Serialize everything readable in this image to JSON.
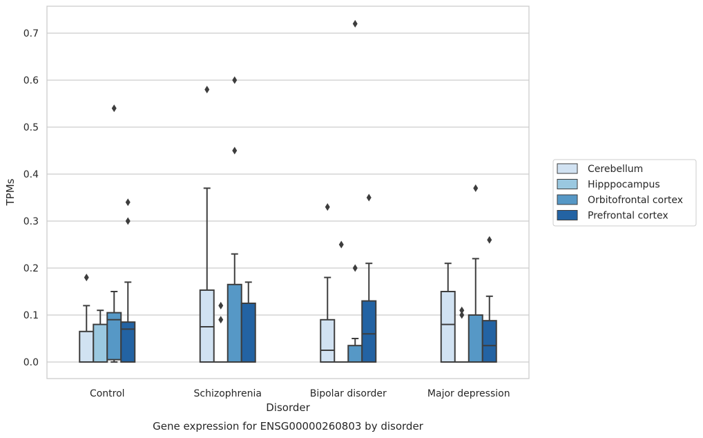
{
  "chart_data": {
    "type": "box",
    "caption": "Gene expression for ENSG00000260803 by disorder",
    "xlabel": "Disorder",
    "ylabel": "TPMs",
    "ylim": [
      -0.035,
      0.76
    ],
    "yticks": [
      0.0,
      0.1,
      0.2,
      0.3,
      0.4,
      0.5,
      0.6,
      0.7
    ],
    "ytick_labels": [
      "0.0",
      "0.1",
      "0.2",
      "0.3",
      "0.4",
      "0.5",
      "0.6",
      "0.7"
    ],
    "grid": "horizontal",
    "legend_position": "right",
    "categories": [
      "Control",
      "Schizophrenia",
      "Bipolar disorder",
      "Major depression"
    ],
    "series": [
      {
        "name": "Cerebellum",
        "color": "#d1e2f2",
        "boxes": [
          {
            "whisker_low": 0.0,
            "q1": 0.0,
            "median": 0.0,
            "q3": 0.065,
            "whisker_high": 0.12,
            "outliers": [
              0.18
            ]
          },
          {
            "whisker_low": 0.0,
            "q1": 0.0,
            "median": 0.075,
            "q3": 0.153,
            "whisker_high": 0.37,
            "outliers": [
              0.58
            ]
          },
          {
            "whisker_low": 0.0,
            "q1": 0.0,
            "median": 0.025,
            "q3": 0.09,
            "whisker_high": 0.18,
            "outliers": [
              0.33
            ]
          },
          {
            "whisker_low": 0.0,
            "q1": 0.0,
            "median": 0.08,
            "q3": 0.15,
            "whisker_high": 0.21,
            "outliers": []
          }
        ]
      },
      {
        "name": "Hipppocampus",
        "color": "#9ac8e0",
        "boxes": [
          {
            "whisker_low": 0.0,
            "q1": 0.0,
            "median": 0.0,
            "q3": 0.08,
            "whisker_high": 0.11,
            "outliers": []
          },
          {
            "whisker_low": 0.0,
            "q1": 0.0,
            "median": 0.0,
            "q3": 0.0,
            "whisker_high": 0.0,
            "outliers": [
              0.12,
              0.09
            ]
          },
          {
            "whisker_low": 0.0,
            "q1": 0.0,
            "median": 0.0,
            "q3": 0.0,
            "whisker_high": 0.0,
            "outliers": [
              0.25
            ]
          },
          {
            "whisker_low": 0.0,
            "q1": 0.0,
            "median": 0.0,
            "q3": 0.0,
            "whisker_high": 0.0,
            "outliers": [
              0.11,
              0.1
            ]
          }
        ]
      },
      {
        "name": "Orbitofrontal cortex",
        "color": "#5698c6",
        "boxes": [
          {
            "whisker_low": 0.0,
            "q1": 0.005,
            "median": 0.09,
            "q3": 0.105,
            "whisker_high": 0.15,
            "outliers": [
              0.54
            ]
          },
          {
            "whisker_low": 0.0,
            "q1": 0.0,
            "median": 0.0,
            "q3": 0.165,
            "whisker_high": 0.23,
            "outliers": [
              0.6,
              0.45
            ]
          },
          {
            "whisker_low": 0.0,
            "q1": 0.0,
            "median": 0.0,
            "q3": 0.035,
            "whisker_high": 0.05,
            "outliers": [
              0.72,
              0.2
            ]
          },
          {
            "whisker_low": 0.0,
            "q1": 0.0,
            "median": 0.0,
            "q3": 0.1,
            "whisker_high": 0.22,
            "outliers": [
              0.37
            ]
          }
        ]
      },
      {
        "name": "Prefrontal cortex",
        "color": "#2363a3",
        "boxes": [
          {
            "whisker_low": 0.0,
            "q1": 0.0,
            "median": 0.07,
            "q3": 0.085,
            "whisker_high": 0.17,
            "outliers": [
              0.34,
              0.3
            ]
          },
          {
            "whisker_low": 0.0,
            "q1": 0.0,
            "median": 0.0,
            "q3": 0.125,
            "whisker_high": 0.17,
            "outliers": []
          },
          {
            "whisker_low": 0.0,
            "q1": 0.0,
            "median": 0.06,
            "q3": 0.13,
            "whisker_high": 0.21,
            "outliers": [
              0.35
            ]
          },
          {
            "whisker_low": 0.0,
            "q1": 0.0,
            "median": 0.035,
            "q3": 0.088,
            "whisker_high": 0.14,
            "outliers": [
              0.26
            ]
          }
        ]
      }
    ]
  }
}
